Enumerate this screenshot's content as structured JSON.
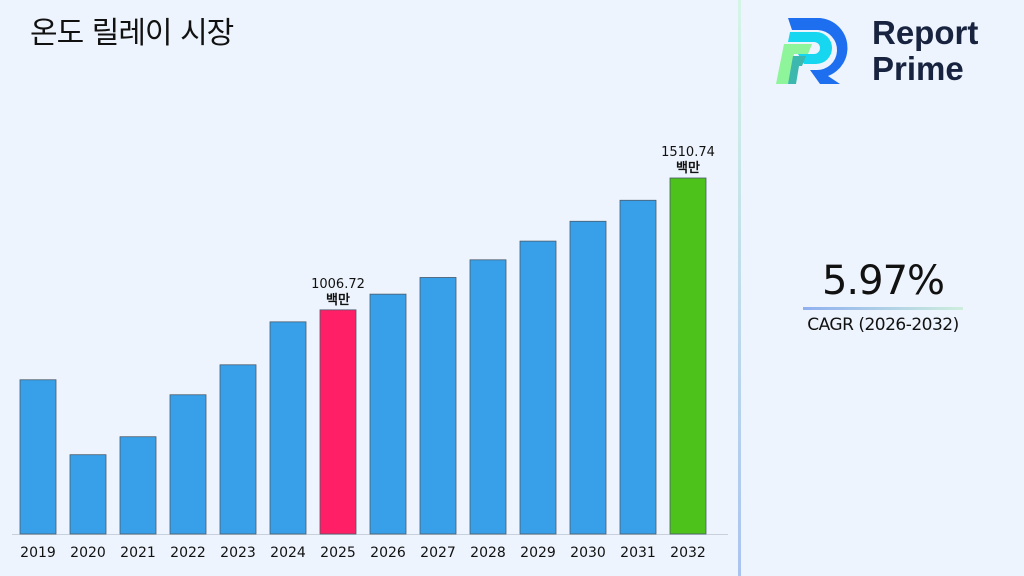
{
  "title": "온도 릴레이 시장",
  "logo": {
    "line1": "Report",
    "line2": "Prime"
  },
  "cagr": {
    "value": "5.97%",
    "label": "CAGR (2026-2032)"
  },
  "chart_data": {
    "type": "bar",
    "title": "온도 릴레이 시장",
    "categories": [
      "2019",
      "2020",
      "2021",
      "2022",
      "2023",
      "2024",
      "2025",
      "2026",
      "2027",
      "2028",
      "2029",
      "2030",
      "2031",
      "2032"
    ],
    "values": [
      739.5,
      453.1,
      521.8,
      682.2,
      796.7,
      960.9,
      1006.72,
      1066.82,
      1130.51,
      1198.0,
      1269.52,
      1345.31,
      1425.63,
      1510.74
    ],
    "unit": "백만",
    "ylim": [
      150,
      1520
    ],
    "grid": false,
    "colors": {
      "default": "#38a0e8",
      "highlight_2025": "#ff1f66",
      "highlight_2032": "#4cc21a"
    },
    "annotations": [
      {
        "category": "2025",
        "value": "1006.72",
        "unit": "백만"
      },
      {
        "category": "2032",
        "value": "1510.74",
        "unit": "백만"
      }
    ]
  }
}
